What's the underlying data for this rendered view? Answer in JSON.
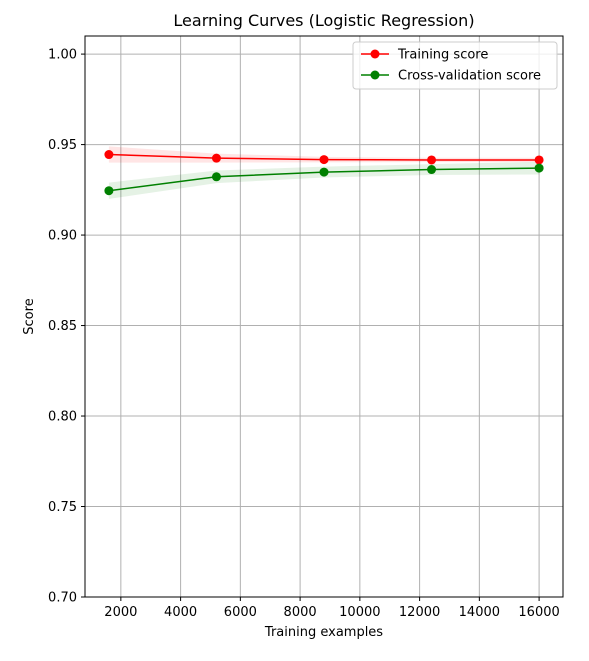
{
  "chart_data": {
    "type": "line",
    "title": "Learning Curves (Logistic Regression)",
    "xlabel": "Training examples",
    "ylabel": "Score",
    "xlim": [
      800,
      16800
    ],
    "ylim": [
      0.7,
      1.01
    ],
    "xticks": [
      2000,
      4000,
      6000,
      8000,
      10000,
      12000,
      14000,
      16000
    ],
    "xtick_labels": [
      "2000",
      "4000",
      "6000",
      "8000",
      "10000",
      "12000",
      "14000",
      "16000"
    ],
    "yticks": [
      0.7,
      0.75,
      0.8,
      0.85,
      0.9,
      0.95,
      1.0
    ],
    "ytick_labels": [
      "0.70",
      "0.75",
      "0.80",
      "0.85",
      "0.90",
      "0.95",
      "1.00"
    ],
    "grid": true,
    "legend_position": "top-right",
    "x": [
      1600,
      5200,
      8800,
      12400,
      16000
    ],
    "series": [
      {
        "name": "Training score",
        "color": "#ff0000",
        "values": [
          0.9445,
          0.9425,
          0.9417,
          0.9415,
          0.9415
        ],
        "band": [
          0.0045,
          0.0025,
          0.0015,
          0.0012,
          0.0012
        ]
      },
      {
        "name": "Cross-validation score",
        "color": "#008000",
        "values": [
          0.9245,
          0.9322,
          0.9348,
          0.9362,
          0.937
        ],
        "band": [
          0.0045,
          0.0035,
          0.003,
          0.003,
          0.0035
        ]
      }
    ]
  }
}
